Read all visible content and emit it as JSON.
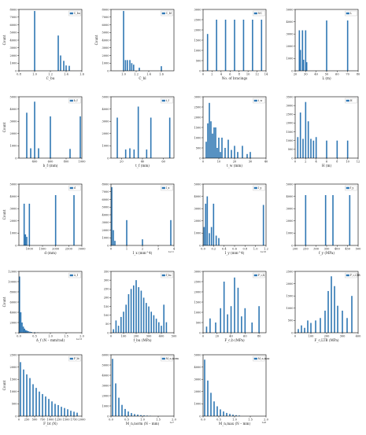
{
  "style": {
    "bar_color": "#2f77b4",
    "axis_color": "#000000"
  },
  "chart_data": [
    {
      "type": "bar",
      "xlabel": "C_bu",
      "ylabel": "Count",
      "legend": "C_bu",
      "legend_position": "top-right",
      "xlim": [
        0.8,
        1.6
      ],
      "ylim": [
        0,
        8000
      ],
      "xticks": [
        "0.8",
        "1.0",
        "1.2",
        "1.4",
        "1.6"
      ],
      "yticks": [
        "0",
        "1000",
        "2000",
        "3000",
        "4000",
        "5000",
        "6000",
        "7000",
        "8000"
      ],
      "yscale_label": "",
      "x": [
        1.0,
        1.3,
        1.33,
        1.37,
        1.4,
        1.44
      ],
      "values": [
        7800,
        4600,
        2000,
        1300,
        700,
        650
      ]
    },
    {
      "type": "bar",
      "xlabel": "C_bl",
      "ylabel": "Count",
      "legend": "C_bl",
      "legend_position": "top-right",
      "xlim": [
        0.8,
        1.8
      ],
      "ylim": [
        0,
        8000
      ],
      "xticks": [
        "1.0",
        "1.2",
        "1.4",
        "1.6"
      ],
      "yticks": [
        "0",
        "1000",
        "2000",
        "3000",
        "4000",
        "5000",
        "6000",
        "7000",
        "8000"
      ],
      "yscale_label": "",
      "x": [
        1.0,
        1.03,
        1.06,
        1.1,
        1.13,
        1.16,
        1.25,
        1.6
      ],
      "values": [
        7800,
        1400,
        1400,
        1400,
        1000,
        800,
        400,
        600
      ]
    },
    {
      "type": "bar",
      "xlabel": "No. of bracings",
      "ylabel": "",
      "legend": "NC",
      "legend_position": "top-right",
      "xlim": [
        0,
        14
      ],
      "ylim": [
        0,
        3000
      ],
      "xticks": [
        "0",
        "2",
        "4",
        "6",
        "8",
        "10",
        "12",
        "14"
      ],
      "yticks": [
        "0",
        "500",
        "1000",
        "1500",
        "2000",
        "2500",
        "3000"
      ],
      "yscale_label": "",
      "x": [
        1,
        3,
        5,
        7,
        9,
        11,
        13
      ],
      "values": [
        1800,
        2500,
        2500,
        2500,
        2500,
        2500,
        2500
      ]
    },
    {
      "type": "bar",
      "xlabel": "L (m)",
      "ylabel": "",
      "legend": "L",
      "legend_position": "top-right",
      "xlim": [
        20,
        80
      ],
      "ylim": [
        0,
        5000
      ],
      "xticks": [
        "20",
        "30",
        "40",
        "50",
        "60",
        "70",
        "80"
      ],
      "yticks": [
        "0",
        "1000",
        "2000",
        "3000",
        "4000",
        "5000"
      ],
      "yscale_label": "",
      "x": [
        24,
        25,
        27,
        28,
        30,
        31,
        50,
        70
      ],
      "values": [
        3300,
        1700,
        3300,
        900,
        3300,
        700,
        4100,
        4100
      ]
    },
    {
      "type": "bar",
      "xlabel": "b_f (mm)",
      "ylabel": "Count",
      "legend": "b_f",
      "legend_position": "top-right",
      "xlim": [
        200,
        1000
      ],
      "ylim": [
        0,
        5000
      ],
      "xticks": [
        "400",
        "600",
        "800",
        "1000"
      ],
      "yticks": [
        "0",
        "1000",
        "2000",
        "3000",
        "4000",
        "5000"
      ],
      "yscale_label": "",
      "x": [
        300,
        350,
        400,
        450,
        600,
        850,
        980
      ],
      "values": [
        3700,
        800,
        4600,
        800,
        3400,
        750,
        3400
      ]
    },
    {
      "type": "bar",
      "xlabel": "t_f (mm)",
      "ylabel": "",
      "legend": "t_f",
      "legend_position": "top-right",
      "xlim": [
        10,
        70
      ],
      "ylim": [
        0,
        5000
      ],
      "xticks": [
        "20",
        "40",
        "60"
      ],
      "yticks": [
        "0",
        "1000",
        "2000",
        "3000",
        "4000",
        "5000"
      ],
      "yscale_label": "",
      "x": [
        16,
        24,
        28,
        32,
        36,
        44,
        48,
        66
      ],
      "values": [
        3300,
        700,
        800,
        700,
        4200,
        700,
        3300,
        3300
      ]
    },
    {
      "type": "bar",
      "xlabel": "t_w (mm)",
      "ylabel": "",
      "legend": "t_w",
      "legend_position": "top-right",
      "xlim": [
        0,
        40
      ],
      "ylim": [
        0,
        3000
      ],
      "xticks": [
        "0",
        "10",
        "20",
        "30",
        "40"
      ],
      "yticks": [
        "0",
        "500",
        "1000",
        "1500",
        "2000",
        "2500",
        "3000"
      ],
      "yscale_label": "",
      "x": [
        2,
        3,
        4,
        5,
        6,
        7,
        8,
        9,
        10,
        11,
        12,
        14,
        16,
        18,
        20,
        22,
        25,
        28,
        30
      ],
      "values": [
        800,
        1700,
        2700,
        1800,
        1200,
        1500,
        1500,
        500,
        1000,
        300,
        1000,
        500,
        900,
        400,
        600,
        300,
        600,
        200,
        300
      ]
    },
    {
      "type": "bar",
      "xlabel": "H (m)",
      "ylabel": "",
      "legend": "H",
      "legend_position": "top-right",
      "xlim": [
        0,
        12
      ],
      "ylim": [
        0,
        3500
      ],
      "xticks": [
        "0",
        "2",
        "4",
        "6",
        "8",
        "10",
        "12"
      ],
      "yticks": [
        "0",
        "500",
        "1000",
        "1500",
        "2000",
        "2500",
        "3000",
        "3500"
      ],
      "yscale_label": "",
      "x": [
        0.5,
        1,
        1.5,
        2,
        2.5,
        3,
        3.5,
        4,
        6,
        8,
        10
      ],
      "values": [
        1200,
        2600,
        1100,
        3200,
        2100,
        1100,
        1000,
        1200,
        1000,
        1000,
        1000
      ]
    },
    {
      "type": "bar",
      "xlabel": "d (mm)",
      "ylabel": "Count",
      "legend": "d",
      "legend_position": "top-right",
      "xlim": [
        600,
        3000
      ],
      "ylim": [
        0,
        5000
      ],
      "xticks": [
        "1000",
        "1500",
        "2000",
        "2500",
        "3000"
      ],
      "yticks": [
        "0",
        "1000",
        "2000",
        "3000",
        "4000",
        "5000"
      ],
      "yscale_label": "",
      "x": [
        800,
        850,
        900,
        1000,
        2000,
        2700
      ],
      "values": [
        3400,
        900,
        700,
        3400,
        4100,
        4100
      ]
    },
    {
      "type": "bar",
      "xlabel": "I_x (mm^4)",
      "ylabel": "",
      "legend": "I_x",
      "legend_position": "top-right",
      "xlim": [
        0,
        4
      ],
      "ylim": [
        0,
        8000
      ],
      "xticks": [
        "0",
        "1",
        "2",
        "3",
        "4"
      ],
      "yticks": [
        "0",
        "1000",
        "2000",
        "3000",
        "4000",
        "5000",
        "6000",
        "7000",
        "8000"
      ],
      "yscale_label": "1e11",
      "x": [
        0.05,
        0.15,
        0.25,
        1.0,
        2.0,
        3.8
      ],
      "values": [
        7600,
        2000,
        600,
        3300,
        800,
        3300
      ]
    },
    {
      "type": "bar",
      "xlabel": "I_y (mm^4)",
      "ylabel": "",
      "legend": "I_y",
      "legend_position": "top-right",
      "xlim": [
        0,
        1.2
      ],
      "ylim": [
        0,
        5000
      ],
      "xticks": [
        "0.0",
        "0.2",
        "0.4",
        "0.6",
        "0.8",
        "1.0",
        "1.2"
      ],
      "yticks": [
        "0",
        "1000",
        "2000",
        "3000",
        "4000",
        "5000"
      ],
      "yscale_label": "1e10",
      "x": [
        0.02,
        0.05,
        0.08,
        0.12,
        0.16,
        0.2,
        0.25,
        0.3,
        1.15
      ],
      "values": [
        1500,
        3400,
        4000,
        1000,
        1500,
        3400,
        800,
        600,
        3300
      ]
    },
    {
      "type": "bar",
      "xlabel": "f_y (MPa)",
      "ylabel": "",
      "legend": "f_y",
      "legend_position": "top-right",
      "xlim": [
        200,
        500
      ],
      "ylim": [
        0,
        5000
      ],
      "xticks": [
        "200",
        "250",
        "300",
        "350",
        "400",
        "450",
        "500"
      ],
      "yticks": [
        "0",
        "1000",
        "2000",
        "3000",
        "4000",
        "5000"
      ],
      "yscale_label": "",
      "x": [
        250,
        345,
        380,
        460
      ],
      "values": [
        4100,
        4100,
        4100,
        4100
      ]
    },
    {
      "type": "bar",
      "xlabel": "Δ_f (N – mm/rad)",
      "ylabel": "Count",
      "legend": "Δ_f",
      "legend_position": "top-right",
      "xlim": [
        0,
        2
      ],
      "ylim": [
        0,
        12000
      ],
      "xticks": [
        "0.0",
        "0.5",
        "1.0",
        "1.5",
        "2.0"
      ],
      "yticks": [
        "0",
        "2000",
        "4000",
        "6000",
        "8000",
        "10000",
        "12000"
      ],
      "yscale_label": "1e13",
      "x": [
        0.02,
        0.06,
        0.1,
        0.14,
        0.18,
        0.22,
        0.26,
        0.3,
        0.35,
        0.4,
        0.5,
        0.6
      ],
      "values": [
        11000,
        4000,
        2000,
        1200,
        800,
        500,
        400,
        300,
        200,
        150,
        100,
        60
      ]
    },
    {
      "type": "bar",
      "xlabel": "f_bu (MPa)",
      "ylabel": "",
      "legend": "f_bu",
      "legend_position": "top-right",
      "xlim": [
        0,
        500
      ],
      "ylim": [
        0,
        350
      ],
      "xticks": [
        "0",
        "100",
        "200",
        "300",
        "400",
        "500"
      ],
      "yticks": [
        "0",
        "50",
        "100",
        "150",
        "200",
        "250",
        "300",
        "350"
      ],
      "yscale_label": "",
      "x": [
        20,
        40,
        60,
        80,
        100,
        120,
        140,
        160,
        180,
        200,
        220,
        240,
        260,
        280,
        300,
        320,
        340,
        360,
        380,
        400,
        420,
        440
      ],
      "values": [
        20,
        70,
        40,
        90,
        120,
        160,
        220,
        250,
        270,
        300,
        260,
        240,
        200,
        170,
        150,
        120,
        100,
        80,
        60,
        40,
        160,
        60
      ]
    },
    {
      "type": "bar",
      "xlabel": "F_c,b (MPa)",
      "ylabel": "",
      "legend": "F_c,b",
      "legend_position": "top-right",
      "xlim": [
        0,
        90
      ],
      "ylim": [
        0,
        3000
      ],
      "xticks": [
        "0",
        "20",
        "40",
        "60",
        "80"
      ],
      "yticks": [
        "0",
        "500",
        "1000",
        "1500",
        "2000",
        "2500",
        "3000"
      ],
      "yscale_label": "",
      "x": [
        5,
        10,
        18,
        25,
        30,
        35,
        40,
        45,
        50,
        55,
        60,
        70,
        80
      ],
      "values": [
        300,
        700,
        500,
        1200,
        2500,
        900,
        1300,
        2700,
        2200,
        800,
        1200,
        500,
        1300
      ]
    },
    {
      "type": "bar",
      "xlabel": "F_c,LTB (MPa)",
      "ylabel": "",
      "legend": "F_c,LTB",
      "legend_position": "top-right",
      "xlim": [
        0,
        400
      ],
      "ylim": [
        0,
        2500
      ],
      "xticks": [
        "0",
        "100",
        "200",
        "300",
        "400"
      ],
      "yticks": [
        "0",
        "500",
        "1000",
        "1500",
        "2000",
        "2500"
      ],
      "yscale_label": "",
      "x": [
        20,
        40,
        60,
        80,
        100,
        130,
        160,
        190,
        210,
        230,
        250,
        270,
        300,
        330,
        360
      ],
      "values": [
        150,
        300,
        200,
        500,
        400,
        500,
        600,
        900,
        1700,
        2300,
        1900,
        1100,
        900,
        600,
        1500
      ]
    },
    {
      "type": "bar",
      "xlabel": "F_bt (N)",
      "ylabel": "Count",
      "legend": "F_bt",
      "legend_position": "top-right",
      "xlim": [
        0,
        2000
      ],
      "ylim": [
        0,
        2500
      ],
      "xticks": [
        "0",
        "250",
        "500",
        "750",
        "1000",
        "1250",
        "1500",
        "1750",
        "2000"
      ],
      "yticks": [
        "0",
        "500",
        "1000",
        "1500",
        "2000",
        "2500"
      ],
      "yscale_label": "",
      "x": [
        50,
        150,
        250,
        350,
        450,
        550,
        650,
        750,
        850,
        950,
        1050,
        1150,
        1250,
        1350,
        1450,
        1550,
        1650,
        1750,
        1850
      ],
      "values": [
        2200,
        1900,
        1700,
        1550,
        1300,
        1150,
        1000,
        900,
        800,
        700,
        600,
        500,
        450,
        380,
        330,
        280,
        220,
        180,
        140
      ]
    },
    {
      "type": "bar",
      "xlabel": "M_n,norm (N – mm)",
      "ylabel": "",
      "legend": "M_n,norm",
      "legend_position": "top-right",
      "xlim": [
        0,
        2
      ],
      "ylim": [
        0,
        6000
      ],
      "xticks": [
        "0.0",
        "0.5",
        "1.0",
        "1.5",
        "2.0"
      ],
      "yticks": [
        "0",
        "1000",
        "2000",
        "3000",
        "4000",
        "5000",
        "6000"
      ],
      "yscale_label": "1e7",
      "x": [
        0.05,
        0.15,
        0.25,
        0.35,
        0.45,
        0.55,
        0.65,
        0.75,
        0.85,
        0.95,
        1.05,
        1.15,
        1.25
      ],
      "values": [
        5600,
        3200,
        1800,
        1100,
        700,
        450,
        300,
        200,
        150,
        100,
        70,
        50,
        30
      ]
    },
    {
      "type": "bar",
      "xlabel": "M_n,max (N – mm)",
      "ylabel": "",
      "legend": "M_n,max",
      "legend_position": "top-right",
      "xlim": [
        0,
        2
      ],
      "ylim": [
        0,
        5000
      ],
      "xticks": [
        "0.0",
        "0.5",
        "1.0",
        "1.5",
        "2.0"
      ],
      "yticks": [
        "0",
        "1000",
        "2000",
        "3000",
        "4000",
        "5000"
      ],
      "yscale_label": "1e8",
      "x": [
        0.05,
        0.15,
        0.25,
        0.35,
        0.45,
        0.55,
        0.65,
        0.75,
        0.85,
        0.95,
        1.05,
        1.15
      ],
      "values": [
        4600,
        2900,
        1900,
        1200,
        800,
        550,
        380,
        260,
        180,
        120,
        80,
        50
      ]
    }
  ]
}
